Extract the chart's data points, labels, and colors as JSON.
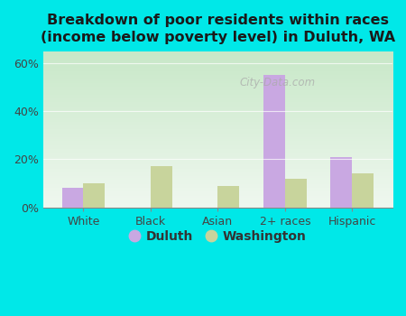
{
  "categories": [
    "White",
    "Black",
    "Asian",
    "2+ races",
    "Hispanic"
  ],
  "duluth": [
    8,
    0,
    0,
    55,
    21
  ],
  "washington": [
    10,
    17,
    9,
    12,
    14
  ],
  "duluth_color": "#c9a8e2",
  "washington_color": "#c8d49c",
  "title": "Breakdown of poor residents within races\n(income below poverty level) in Duluth, WA",
  "ylim": [
    0,
    65
  ],
  "yticks": [
    0,
    20,
    40,
    60
  ],
  "ytick_labels": [
    "0%",
    "20%",
    "40%",
    "60%"
  ],
  "background_outer": "#00e8e8",
  "background_inner_top": "#c8e8c8",
  "background_inner_bottom": "#f0f8f0",
  "watermark": "City-Data.com",
  "legend_duluth": "Duluth",
  "legend_washington": "Washington",
  "bar_width": 0.32,
  "title_fontsize": 11.5,
  "tick_fontsize": 9,
  "legend_fontsize": 10
}
